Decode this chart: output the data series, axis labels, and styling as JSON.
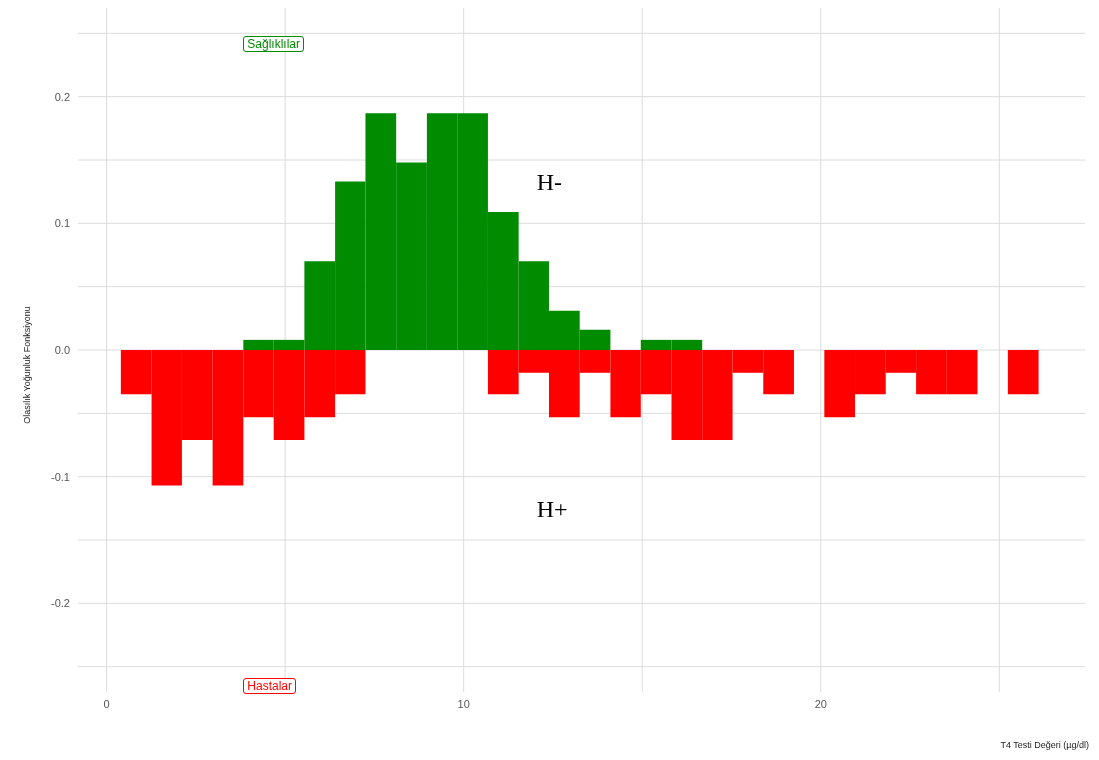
{
  "chart_data": {
    "type": "histogram",
    "xlabel": "T4 Testi Değeri (µg/dl)",
    "ylabel": "Olasılık Yoğunluk Fonksiyonu",
    "bins": [
      0.4,
      1.26,
      2.11,
      2.97,
      3.83,
      4.68,
      5.54,
      6.4,
      7.25,
      8.11,
      8.97,
      9.82,
      10.68,
      11.54,
      12.39,
      13.25,
      14.11,
      14.96,
      15.82,
      16.68,
      17.53,
      18.39,
      19.25,
      20.1,
      20.96,
      21.82,
      22.67,
      23.53,
      24.39,
      25.24,
      26.1
    ],
    "series": [
      {
        "name": "Sağlıklılar",
        "color": "#008b00",
        "values": [
          0,
          0,
          0,
          0,
          0.008,
          0.008,
          0.07,
          0.133,
          0.187,
          0.148,
          0.187,
          0.187,
          0.109,
          0.07,
          0.031,
          0.016,
          0,
          0.008,
          0.008,
          0,
          0,
          0,
          0,
          0,
          0,
          0,
          0,
          0,
          0,
          0
        ]
      },
      {
        "name": "Hastalar",
        "color": "#ff0000",
        "values": [
          -0.035,
          -0.107,
          -0.071,
          -0.107,
          -0.053,
          -0.071,
          -0.053,
          -0.035,
          0,
          0,
          0,
          0,
          -0.035,
          -0.018,
          -0.053,
          -0.018,
          -0.053,
          -0.035,
          -0.071,
          -0.071,
          -0.018,
          -0.035,
          0,
          -0.053,
          -0.035,
          -0.018,
          -0.035,
          -0.035,
          0,
          -0.035
        ]
      }
    ],
    "annotations": [
      "H-",
      "H+"
    ],
    "xlim": [
      -0.8,
      27.4
    ],
    "xticks": [
      0,
      {
        "value": 5,
        "label": null
      },
      10,
      {
        "value": 15,
        "label": null
      },
      20,
      {
        "value": 25,
        "label": null
      }
    ],
    "ylim": [
      -0.27,
      0.27
    ],
    "yticks": [
      {
        "value": -0.25,
        "label": null
      },
      -0.2,
      {
        "value": -0.15,
        "label": null
      },
      -0.1,
      {
        "value": -0.05,
        "label": null
      },
      {
        "value": 0,
        "label": "0.0"
      },
      {
        "value": 0.05,
        "label": null
      },
      0.1,
      {
        "value": 0.15,
        "label": null
      },
      0.2,
      {
        "value": 0.25,
        "label": null
      }
    ],
    "grid": true
  }
}
